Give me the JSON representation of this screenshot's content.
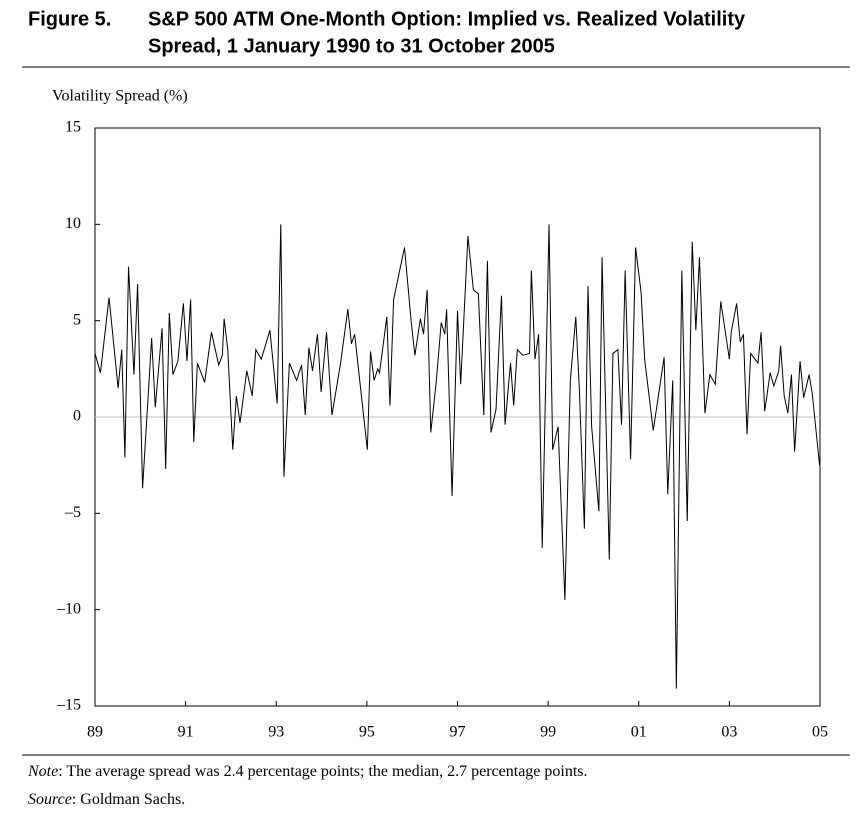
{
  "chart_data": {
    "type": "line",
    "figure_label": "Figure 5.",
    "title": "S&P 500 ATM One-Month Option: Implied vs. Realized Volatility",
    "title_line2": "Spread, 1 January 1990 to 31 October 2005",
    "y_label": "Volatility Spread (%)",
    "note_label": "Note",
    "note": ": The average spread was 2.4 percentage points; the median, 2.7 percentage points.",
    "source_label": "Source",
    "source": ": Goldman Sachs.",
    "color": "#000000",
    "zero_line": true,
    "xlim": [
      1989,
      2005
    ],
    "ylim": [
      -15,
      15
    ],
    "xticks": [
      {
        "value": 1989,
        "label": "89"
      },
      {
        "value": 1991,
        "label": "91"
      },
      {
        "value": 1993,
        "label": "93"
      },
      {
        "value": 1995,
        "label": "95"
      },
      {
        "value": 1997,
        "label": "97"
      },
      {
        "value": 1999,
        "label": "99"
      },
      {
        "value": 2001,
        "label": "01"
      },
      {
        "value": 2003,
        "label": "03"
      },
      {
        "value": 2005,
        "label": "05"
      }
    ],
    "yticks": [
      {
        "value": -15,
        "label": "–15"
      },
      {
        "value": -10,
        "label": "–10"
      },
      {
        "value": -5,
        "label": "–5"
      },
      0,
      5,
      10,
      15
    ],
    "x": [
      1989.0,
      1989.12,
      1989.31,
      1989.51,
      1989.59,
      1989.66,
      1989.74,
      1989.86,
      1989.94,
      1990.05,
      1990.25,
      1990.33,
      1990.48,
      1990.56,
      1990.64,
      1990.72,
      1990.83,
      1990.95,
      1991.03,
      1991.11,
      1991.18,
      1991.26,
      1991.42,
      1991.57,
      1991.73,
      1991.81,
      1991.85,
      1991.93,
      1992.04,
      1992.12,
      1992.2,
      1992.35,
      1992.47,
      1992.55,
      1992.67,
      1992.86,
      1993.02,
      1993.1,
      1993.17,
      1993.29,
      1993.45,
      1993.56,
      1993.64,
      1993.72,
      1993.8,
      1993.91,
      1993.99,
      1994.11,
      1994.23,
      1994.42,
      1994.58,
      1994.66,
      1994.73,
      1995.01,
      1995.08,
      1995.16,
      1995.24,
      1995.28,
      1995.44,
      1995.51,
      1995.59,
      1995.83,
      1995.98,
      1996.06,
      1996.18,
      1996.25,
      1996.33,
      1996.41,
      1996.53,
      1996.64,
      1996.72,
      1996.76,
      1996.88,
      1997.0,
      1997.07,
      1997.23,
      1997.35,
      1997.46,
      1997.58,
      1997.66,
      1997.74,
      1997.85,
      1997.97,
      1998.05,
      1998.17,
      1998.24,
      1998.32,
      1998.44,
      1998.59,
      1998.63,
      1998.71,
      1998.79,
      1998.87,
      1999.02,
      1999.1,
      1999.22,
      1999.37,
      1999.49,
      1999.61,
      1999.69,
      1999.8,
      1999.88,
      1999.96,
      2000.12,
      2000.19,
      2000.35,
      2000.43,
      2000.54,
      2000.62,
      2000.7,
      2000.82,
      2000.93,
      2001.05,
      2001.13,
      2001.32,
      2001.44,
      2001.56,
      2001.64,
      2001.75,
      2001.83,
      2001.95,
      2002.07,
      2002.18,
      2002.26,
      2002.34,
      2002.46,
      2002.57,
      2002.69,
      2002.81,
      2003.0,
      2003.04,
      2003.16,
      2003.24,
      2003.31,
      2003.39,
      2003.47,
      2003.63,
      2003.7,
      2003.78,
      2003.9,
      2003.98,
      2004.09,
      2004.13,
      2004.21,
      2004.29,
      2004.37,
      2004.44,
      2004.56,
      2004.64,
      2004.76,
      2004.83,
      2004.99
    ],
    "values": [
      3.3,
      2.3,
      6.2,
      1.5,
      3.5,
      -2.1,
      7.8,
      2.2,
      6.9,
      -3.7,
      4.1,
      0.5,
      4.6,
      -2.7,
      5.4,
      2.2,
      2.9,
      5.9,
      2.9,
      6.1,
      -1.3,
      2.8,
      1.8,
      4.4,
      2.7,
      3.2,
      5.1,
      3.5,
      -1.7,
      1.1,
      -0.3,
      2.4,
      1.1,
      3.5,
      3.0,
      4.5,
      0.7,
      10.0,
      -3.1,
      2.8,
      1.9,
      2.7,
      0.1,
      3.6,
      2.4,
      4.3,
      1.3,
      4.4,
      0.1,
      2.8,
      5.6,
      3.8,
      4.3,
      -1.7,
      3.4,
      1.9,
      2.5,
      2.3,
      5.2,
      0.6,
      6.1,
      8.8,
      4.9,
      3.2,
      5.1,
      4.3,
      6.6,
      -0.8,
      1.8,
      4.9,
      4.3,
      5.6,
      -4.1,
      5.5,
      1.7,
      9.4,
      6.6,
      6.4,
      0.1,
      8.1,
      -0.8,
      0.4,
      6.3,
      -0.4,
      2.8,
      0.6,
      3.5,
      3.2,
      3.3,
      7.6,
      3.0,
      4.3,
      -6.8,
      10.0,
      -1.7,
      -0.5,
      -9.5,
      1.9,
      5.2,
      1.4,
      -5.8,
      6.8,
      -0.5,
      -4.9,
      8.3,
      -7.4,
      3.3,
      3.5,
      -0.4,
      7.6,
      -2.2,
      8.8,
      6.5,
      3.0,
      -0.7,
      1.2,
      3.1,
      -4.0,
      1.9,
      -14.1,
      7.6,
      -5.4,
      9.1,
      4.5,
      8.3,
      0.2,
      2.2,
      1.7,
      6.0,
      3.0,
      4.4,
      5.9,
      3.9,
      4.3,
      -0.9,
      3.3,
      2.8,
      4.4,
      0.3,
      2.3,
      1.6,
      2.4,
      3.7,
      1.1,
      0.2,
      2.2,
      -1.8,
      2.9,
      1.0,
      2.2,
      1.2,
      -2.5
    ]
  }
}
